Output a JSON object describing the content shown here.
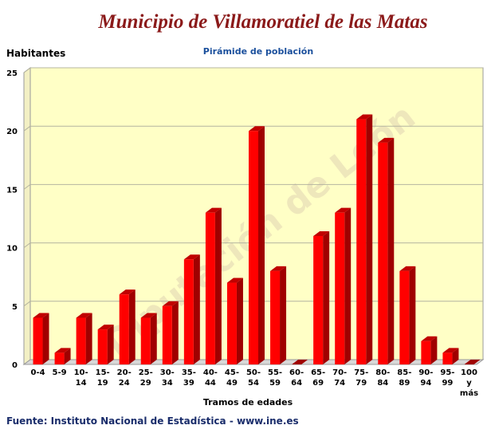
{
  "header": {
    "title": "Municipio de Villamoratiel de las Matas"
  },
  "footer": {
    "source": "Fuente: Instituto Nacional de Estadística - www.ine.es"
  },
  "watermark": "Diputación de León",
  "colors": {
    "bar": "#ff0000",
    "bar_dark": "#a00000",
    "plot_background": "#ffffc6",
    "title": "#8b1a1a",
    "subtitle": "#1a4f9c",
    "source": "#1a2d6b"
  },
  "chart_data": {
    "type": "bar",
    "title": "Pirámide de población",
    "ylabel": "Habitantes",
    "xlabel": "Tramos de edades",
    "ylim": [
      0,
      25
    ],
    "yticks": [
      0,
      5,
      10,
      15,
      20,
      25
    ],
    "grid": true,
    "categories": [
      "0-4",
      "5-9",
      "10-14",
      "15-19",
      "20-24",
      "25-29",
      "30-34",
      "35-39",
      "40-44",
      "45-49",
      "50-54",
      "55-59",
      "60-64",
      "65-69",
      "70-74",
      "75-79",
      "80-84",
      "85-89",
      "90-94",
      "95-99",
      "100 y más"
    ],
    "category_labels": [
      [
        "0-4"
      ],
      [
        "5-9"
      ],
      [
        "10-",
        "14"
      ],
      [
        "15-",
        "19"
      ],
      [
        "20-",
        "24"
      ],
      [
        "25-",
        "29"
      ],
      [
        "30-",
        "34"
      ],
      [
        "35-",
        "39"
      ],
      [
        "40-",
        "44"
      ],
      [
        "45-",
        "49"
      ],
      [
        "50-",
        "54"
      ],
      [
        "55-",
        "59"
      ],
      [
        "60-",
        "64"
      ],
      [
        "65-",
        "69"
      ],
      [
        "70-",
        "74"
      ],
      [
        "75-",
        "79"
      ],
      [
        "80-",
        "84"
      ],
      [
        "85-",
        "89"
      ],
      [
        "90-",
        "94"
      ],
      [
        "95-",
        "99"
      ],
      [
        "100",
        "y",
        "más"
      ]
    ],
    "values": [
      4,
      1,
      4,
      3,
      6,
      4,
      5,
      9,
      13,
      7,
      20,
      8,
      0,
      11,
      13,
      21,
      19,
      8,
      2,
      1,
      0
    ]
  }
}
